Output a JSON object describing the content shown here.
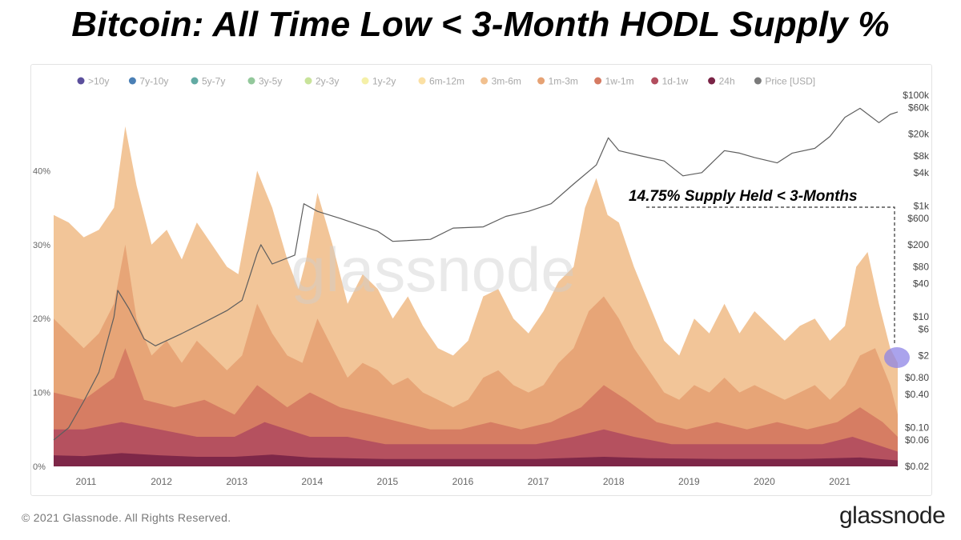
{
  "header": {
    "title": "Bitcoin: All Time Low < 3-Month HODL Supply %"
  },
  "footer": {
    "copyright": "© 2021 Glassnode. All Rights Reserved.",
    "brand": "glassnode"
  },
  "chart_data": {
    "type": "area",
    "watermark": "glassnode",
    "legend_position": "top",
    "legend": [
      {
        "label": ">10y",
        "color": "#5b4f9c"
      },
      {
        "label": "7y-10y",
        "color": "#4a7fb5"
      },
      {
        "label": "5y-7y",
        "color": "#62aaa3"
      },
      {
        "label": "3y-5y",
        "color": "#93c89b"
      },
      {
        "label": "2y-3y",
        "color": "#c8e39a"
      },
      {
        "label": "1y-2y",
        "color": "#f5f0a8"
      },
      {
        "label": "6m-12m",
        "color": "#fbe0a4"
      },
      {
        "label": "3m-6m",
        "color": "#f1c08f"
      },
      {
        "label": "1m-3m",
        "color": "#e6a274"
      },
      {
        "label": "1w-1m",
        "color": "#d57a62"
      },
      {
        "label": "1d-1w",
        "color": "#b24d5e"
      },
      {
        "label": "24h",
        "color": "#7a2446"
      },
      {
        "label": "Price [USD]",
        "color": "#7a7a7a"
      }
    ],
    "x_axis": {
      "min": 2010.6,
      "max": 2021.8,
      "ticks": [
        "2011",
        "2012",
        "2013",
        "2014",
        "2015",
        "2016",
        "2017",
        "2018",
        "2019",
        "2020",
        "2021"
      ]
    },
    "y_left": {
      "min": 0,
      "max": 50,
      "unit": "%",
      "ticks": [
        "0%",
        "10%",
        "20%",
        "30%",
        "40%"
      ]
    },
    "y_right": {
      "scale": "log",
      "ticks": [
        "$0.02",
        "$0.06",
        "$0.10",
        "$0.40",
        "$0.80",
        "$2",
        "$6",
        "$10",
        "$40",
        "$80",
        "$200",
        "$600",
        "$1k",
        "$4k",
        "$8k",
        "$20k",
        "$60k",
        "$100k"
      ]
    },
    "annotation": {
      "text": "14.75% Supply Held < 3-Months",
      "value_pct": 14.75
    },
    "series": [
      {
        "name": "3m-6m",
        "color": "#f1c08f",
        "x": [
          2010.6,
          2010.8,
          2011.0,
          2011.2,
          2011.4,
          2011.55,
          2011.7,
          2011.9,
          2012.1,
          2012.3,
          2012.5,
          2012.7,
          2012.9,
          2013.05,
          2013.3,
          2013.5,
          2013.7,
          2013.85,
          2013.95,
          2014.1,
          2014.3,
          2014.5,
          2014.7,
          2014.9,
          2015.1,
          2015.3,
          2015.5,
          2015.7,
          2015.9,
          2016.1,
          2016.3,
          2016.5,
          2016.7,
          2016.9,
          2017.1,
          2017.3,
          2017.5,
          2017.65,
          2017.8,
          2017.95,
          2018.1,
          2018.3,
          2018.5,
          2018.7,
          2018.9,
          2019.1,
          2019.3,
          2019.5,
          2019.7,
          2019.9,
          2020.1,
          2020.3,
          2020.5,
          2020.7,
          2020.9,
          2021.1,
          2021.25,
          2021.4,
          2021.55,
          2021.7,
          2021.8
        ],
        "values": [
          34,
          33,
          31,
          32,
          35,
          46,
          38,
          30,
          32,
          28,
          33,
          30,
          27,
          26,
          40,
          35,
          28,
          24,
          28,
          37,
          30,
          22,
          26,
          24,
          20,
          23,
          19,
          16,
          15,
          17,
          23,
          24,
          20,
          18,
          21,
          25,
          27,
          35,
          39,
          34,
          33,
          27,
          22,
          17,
          15,
          20,
          18,
          22,
          18,
          21,
          19,
          17,
          19,
          20,
          17,
          19,
          27,
          29,
          22,
          16,
          14
        ]
      },
      {
        "name": "1m-3m",
        "color": "#e6a274",
        "x": [
          2010.6,
          2010.8,
          2011.0,
          2011.2,
          2011.4,
          2011.55,
          2011.7,
          2011.9,
          2012.1,
          2012.3,
          2012.5,
          2012.7,
          2012.9,
          2013.1,
          2013.3,
          2013.5,
          2013.7,
          2013.9,
          2014.1,
          2014.3,
          2014.5,
          2014.7,
          2014.9,
          2015.1,
          2015.3,
          2015.5,
          2015.7,
          2015.9,
          2016.1,
          2016.3,
          2016.5,
          2016.7,
          2016.9,
          2017.1,
          2017.3,
          2017.5,
          2017.7,
          2017.9,
          2018.1,
          2018.3,
          2018.5,
          2018.7,
          2018.9,
          2019.1,
          2019.3,
          2019.5,
          2019.7,
          2019.9,
          2020.1,
          2020.3,
          2020.5,
          2020.7,
          2020.9,
          2021.1,
          2021.3,
          2021.5,
          2021.7,
          2021.8
        ],
        "values": [
          20,
          18,
          16,
          18,
          22,
          30,
          20,
          15,
          17,
          14,
          17,
          15,
          13,
          15,
          22,
          18,
          15,
          14,
          20,
          16,
          12,
          14,
          13,
          11,
          12,
          10,
          9,
          8,
          9,
          12,
          13,
          11,
          10,
          11,
          14,
          16,
          21,
          23,
          20,
          16,
          13,
          10,
          9,
          11,
          10,
          12,
          10,
          11,
          10,
          9,
          10,
          11,
          9,
          11,
          15,
          16,
          11,
          7
        ]
      },
      {
        "name": "1w-1m",
        "color": "#d57a62",
        "x": [
          2010.6,
          2011.0,
          2011.4,
          2011.55,
          2011.8,
          2012.2,
          2012.6,
          2013.0,
          2013.3,
          2013.7,
          2014.0,
          2014.4,
          2014.8,
          2015.2,
          2015.6,
          2016.0,
          2016.4,
          2016.8,
          2017.2,
          2017.6,
          2017.9,
          2018.2,
          2018.6,
          2019.0,
          2019.4,
          2019.8,
          2020.2,
          2020.6,
          2021.0,
          2021.3,
          2021.6,
          2021.8
        ],
        "values": [
          10,
          9,
          12,
          16,
          9,
          8,
          9,
          7,
          11,
          8,
          10,
          8,
          7,
          6,
          5,
          5,
          6,
          5,
          6,
          8,
          11,
          9,
          6,
          5,
          6,
          5,
          6,
          5,
          6,
          8,
          6,
          4
        ]
      },
      {
        "name": "1d-1w",
        "color": "#b24d5e",
        "x": [
          2010.6,
          2011.0,
          2011.5,
          2012.0,
          2012.5,
          2013.0,
          2013.4,
          2014.0,
          2014.5,
          2015.0,
          2015.5,
          2016.0,
          2016.5,
          2017.0,
          2017.5,
          2017.9,
          2018.3,
          2018.8,
          2019.3,
          2019.8,
          2020.3,
          2020.8,
          2021.2,
          2021.5,
          2021.8
        ],
        "values": [
          5,
          5,
          6,
          5,
          4,
          4,
          6,
          4,
          4,
          3,
          3,
          3,
          3,
          3,
          4,
          5,
          4,
          3,
          3,
          3,
          3,
          3,
          4,
          3,
          2
        ]
      },
      {
        "name": "24h",
        "color": "#7a2446",
        "x": [
          2010.6,
          2011.0,
          2011.5,
          2012.0,
          2012.5,
          2013.0,
          2013.5,
          2014.0,
          2015.0,
          2016.0,
          2017.0,
          2017.9,
          2018.5,
          2019.5,
          2020.5,
          2021.3,
          2021.8
        ],
        "values": [
          1.5,
          1.4,
          1.8,
          1.5,
          1.3,
          1.3,
          1.6,
          1.2,
          1.0,
          1.0,
          1.0,
          1.3,
          1.1,
          1.0,
          1.0,
          1.2,
          0.8
        ]
      },
      {
        "name": "Price [USD]",
        "color": "#7a7a7a",
        "axis": "right",
        "x": [
          2010.6,
          2010.8,
          2011.0,
          2011.2,
          2011.4,
          2011.45,
          2011.6,
          2011.8,
          2011.95,
          2012.3,
          2012.6,
          2012.9,
          2013.1,
          2013.3,
          2013.35,
          2013.5,
          2013.8,
          2013.92,
          2014.1,
          2014.4,
          2014.9,
          2015.1,
          2015.6,
          2015.9,
          2016.3,
          2016.6,
          2016.9,
          2017.2,
          2017.5,
          2017.8,
          2017.96,
          2018.1,
          2018.4,
          2018.7,
          2018.95,
          2019.2,
          2019.5,
          2019.7,
          2019.9,
          2020.2,
          2020.4,
          2020.7,
          2020.9,
          2021.1,
          2021.3,
          2021.55,
          2021.7,
          2021.8
        ],
        "values": [
          0.06,
          0.1,
          0.3,
          1.0,
          10,
          30,
          14,
          4,
          3,
          5,
          8,
          13,
          20,
          140,
          200,
          90,
          130,
          1100,
          800,
          600,
          350,
          230,
          250,
          400,
          420,
          650,
          800,
          1100,
          2500,
          5500,
          17000,
          10000,
          8000,
          6500,
          3500,
          4000,
          10000,
          9000,
          7500,
          6000,
          9000,
          11000,
          18000,
          40000,
          58000,
          32000,
          45000,
          50000
        ]
      }
    ]
  }
}
